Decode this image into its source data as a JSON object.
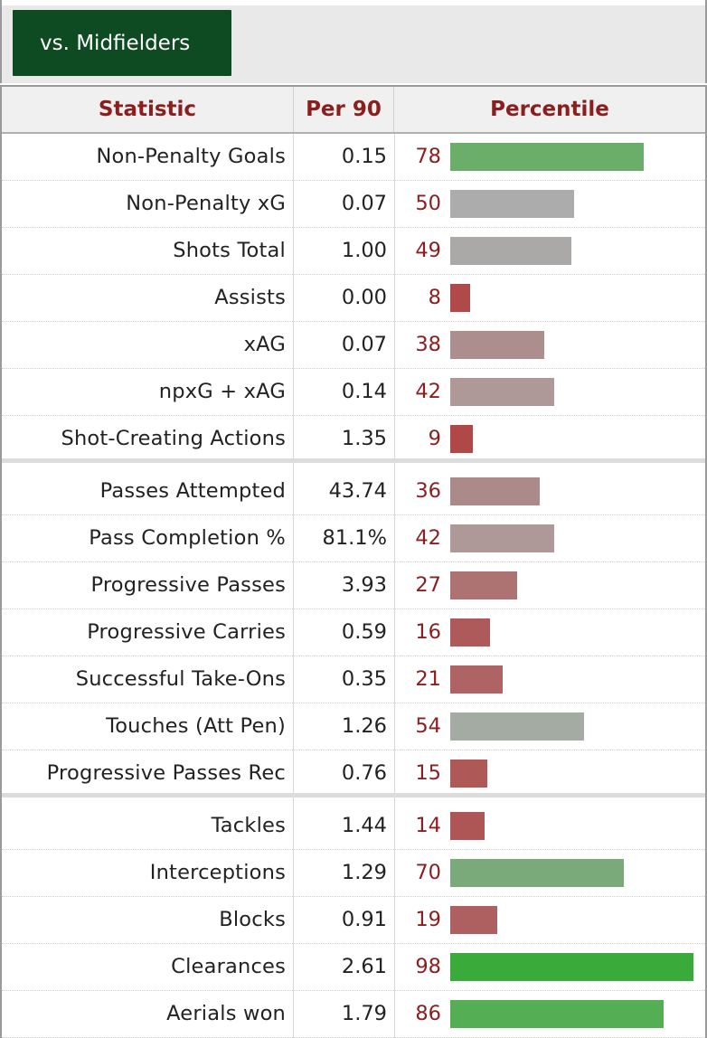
{
  "tab": {
    "label": "vs. Midfielders"
  },
  "header": {
    "statistic": "Statistic",
    "per90": "Per 90",
    "percentile": "Percentile"
  },
  "groups": [
    {
      "rows": [
        {
          "stat": "Non-Penalty Goals",
          "per90": "0.15",
          "percentile": "78",
          "bar_color": "#6aae6a"
        },
        {
          "stat": "Non-Penalty xG",
          "per90": "0.07",
          "percentile": "50",
          "bar_color": "#acacac"
        },
        {
          "stat": "Shots Total",
          "per90": "1.00",
          "percentile": "49",
          "bar_color": "#aba8a8"
        },
        {
          "stat": "Assists",
          "per90": "0.00",
          "percentile": "8",
          "bar_color": "#b04a4a"
        },
        {
          "stat": "xAG",
          "per90": "0.07",
          "percentile": "38",
          "bar_color": "#ad8e8e"
        },
        {
          "stat": "npxG + xAG",
          "per90": "0.14",
          "percentile": "42",
          "bar_color": "#ae9898"
        },
        {
          "stat": "Shot-Creating Actions",
          "per90": "1.35",
          "percentile": "9",
          "bar_color": "#b04848"
        }
      ]
    },
    {
      "rows": [
        {
          "stat": "Passes Attempted",
          "per90": "43.74",
          "percentile": "36",
          "bar_color": "#ad8a8a"
        },
        {
          "stat": "Pass Completion %",
          "per90": "81.1%",
          "percentile": "42",
          "bar_color": "#ae9898"
        },
        {
          "stat": "Progressive Passes",
          "per90": "3.93",
          "percentile": "27",
          "bar_color": "#ad7272"
        },
        {
          "stat": "Progressive Carries",
          "per90": "0.59",
          "percentile": "16",
          "bar_color": "#ae5a5a"
        },
        {
          "stat": "Successful Take-Ons",
          "per90": "0.35",
          "percentile": "21",
          "bar_color": "#ae6464"
        },
        {
          "stat": "Touches (Att Pen)",
          "per90": "1.26",
          "percentile": "54",
          "bar_color": "#a3aba3"
        },
        {
          "stat": "Progressive Passes Rec",
          "per90": "0.76",
          "percentile": "15",
          "bar_color": "#ae5858"
        }
      ]
    },
    {
      "rows": [
        {
          "stat": "Tackles",
          "per90": "1.44",
          "percentile": "14",
          "bar_color": "#ae5555"
        },
        {
          "stat": "Interceptions",
          "per90": "1.29",
          "percentile": "70",
          "bar_color": "#7aaa7a"
        },
        {
          "stat": "Blocks",
          "per90": "0.91",
          "percentile": "19",
          "bar_color": "#ae5f5f"
        },
        {
          "stat": "Clearances",
          "per90": "2.61",
          "percentile": "98",
          "bar_color": "#3aab3a"
        },
        {
          "stat": "Aerials won",
          "per90": "1.79",
          "percentile": "86",
          "bar_color": "#54ae54"
        }
      ]
    }
  ]
}
